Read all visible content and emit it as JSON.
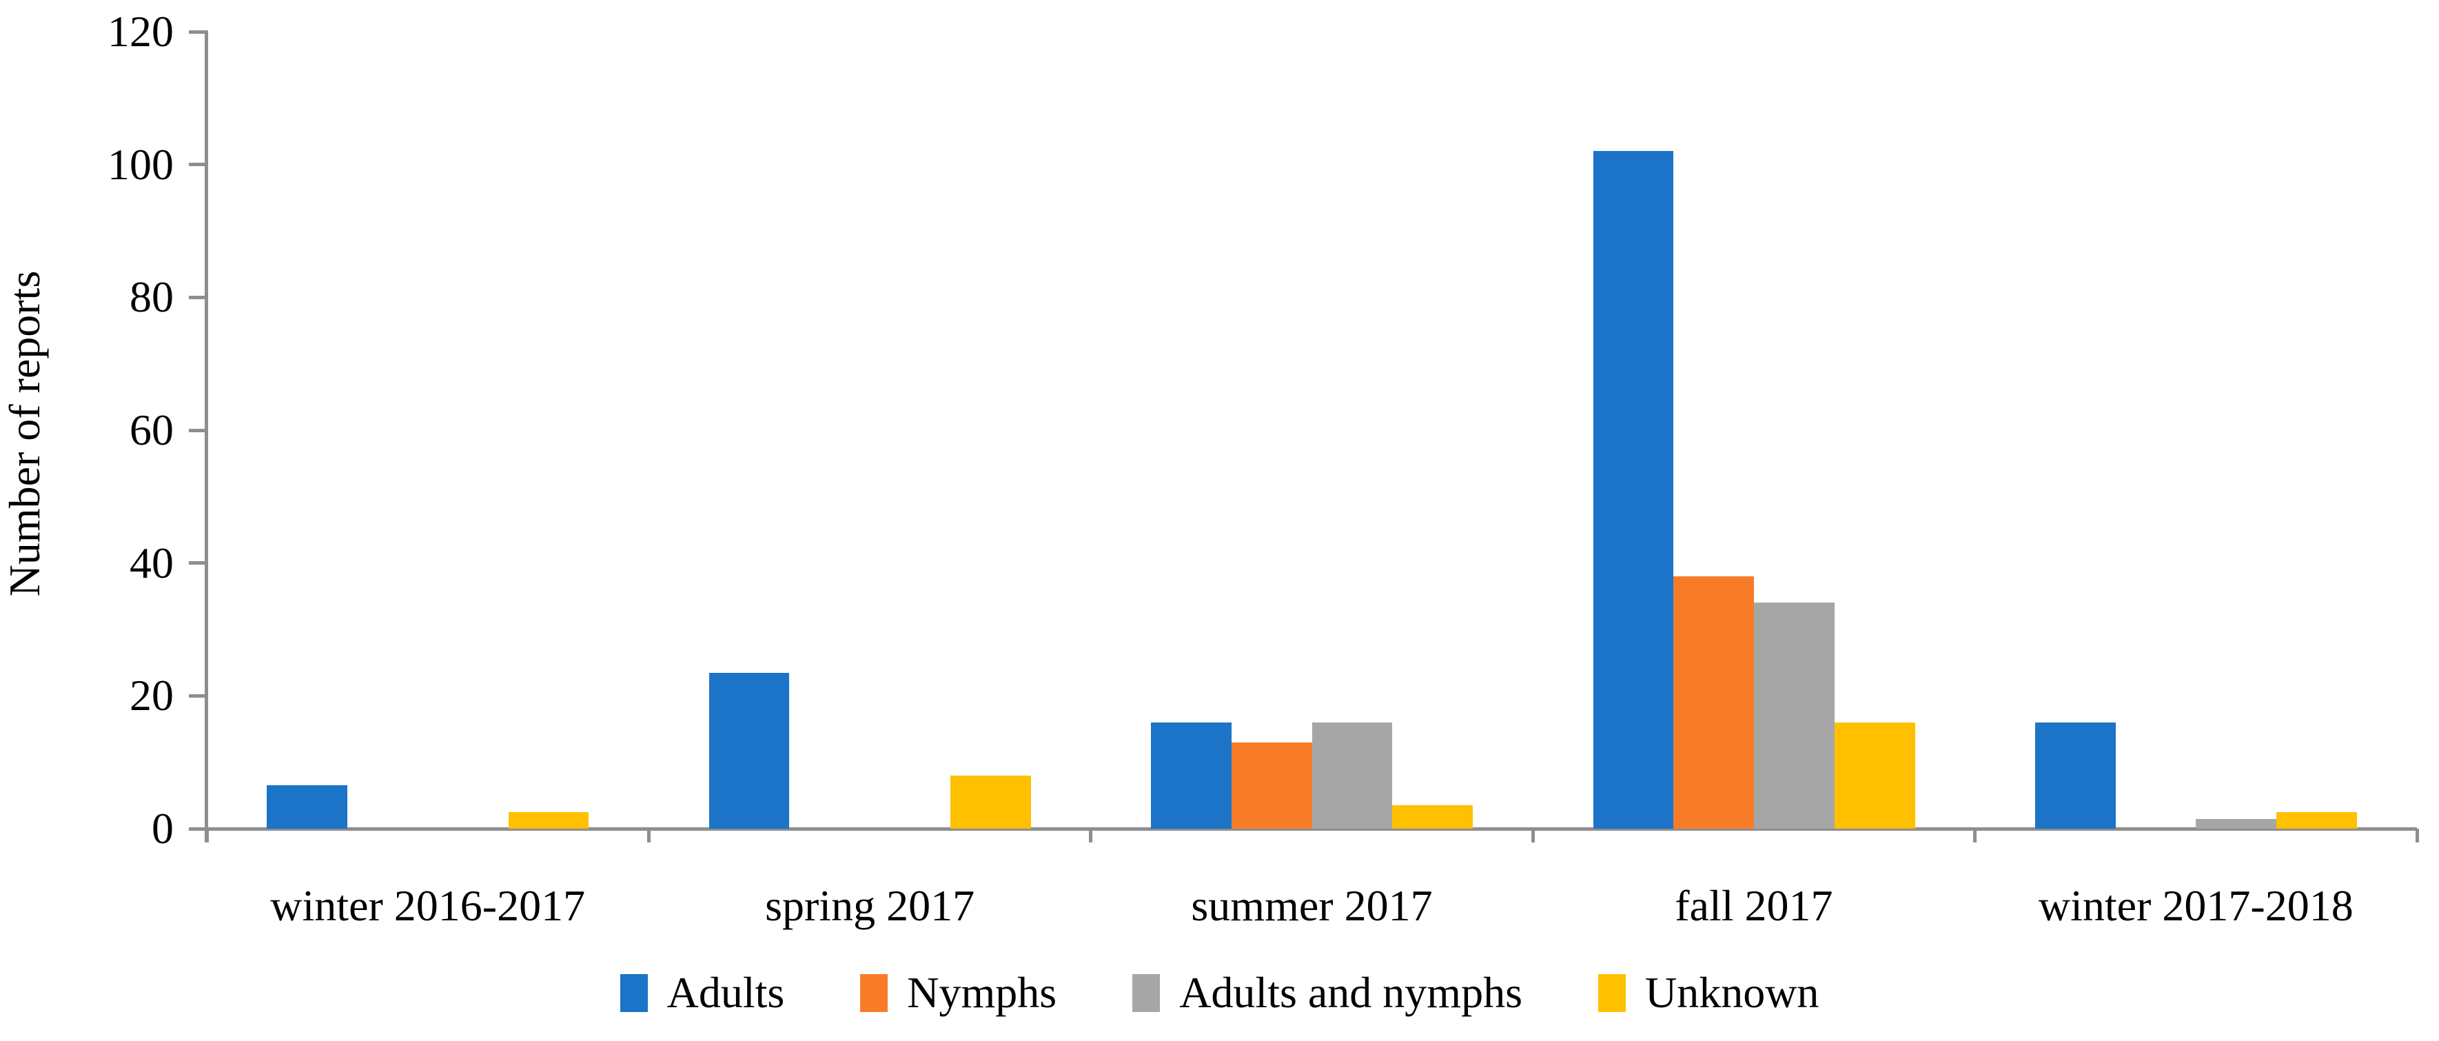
{
  "chart_data": {
    "type": "bar",
    "title": "",
    "xlabel": "",
    "ylabel": "Number of reports",
    "categories": [
      "winter 2016-2017",
      "spring 2017",
      "summer 2017",
      "fall 2017",
      "winter 2017-2018"
    ],
    "series": [
      {
        "name": "Adults",
        "color": "#1B74C8",
        "values": [
          6.5,
          23.5,
          16,
          102,
          16
        ]
      },
      {
        "name": "Nymphs",
        "color": "#F87C28",
        "values": [
          0,
          0,
          13,
          38,
          0
        ]
      },
      {
        "name": "Adults and nymphs",
        "color": "#A6A6A6",
        "values": [
          0,
          0,
          16,
          34,
          1.5
        ]
      },
      {
        "name": "Unknown",
        "color": "#FFC000",
        "values": [
          2.5,
          8,
          3.5,
          16,
          2.5
        ]
      }
    ],
    "ylim": [
      0,
      120
    ],
    "yticks": [
      0,
      20,
      40,
      60,
      80,
      100,
      120
    ],
    "grid": "off",
    "legend_position": "bottom"
  },
  "colors": {
    "axis": "#8E8E8E",
    "text": "#000000",
    "background": "#FFFFFF"
  }
}
